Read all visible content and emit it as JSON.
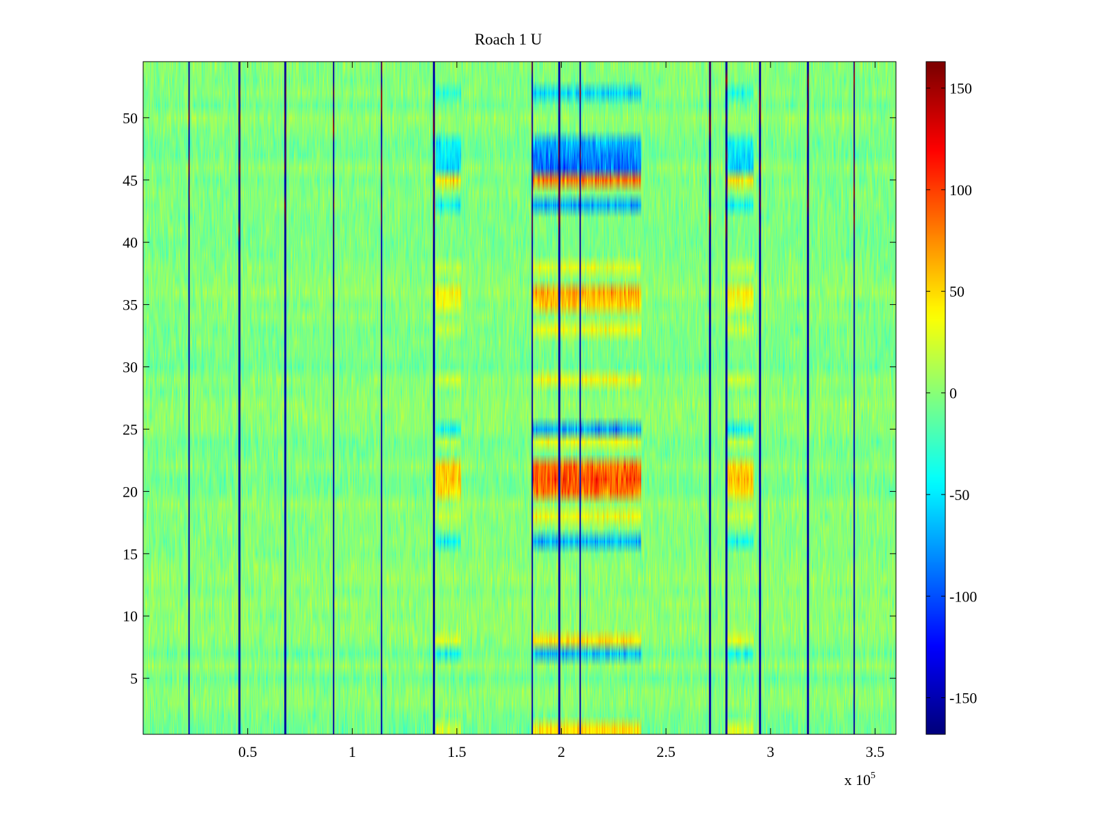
{
  "chart_data": {
    "type": "heatmap",
    "title": "Roach 1 U",
    "xlabel": "",
    "ylabel": "",
    "x_multiplier_label": "x 10",
    "x_multiplier_exponent": "5",
    "xlim": [
      0,
      3.6
    ],
    "ylim": [
      0.5,
      54.5
    ],
    "x_ticks": [
      0.5,
      1,
      1.5,
      2,
      2.5,
      3,
      3.5
    ],
    "x_tick_labels": [
      "0.5",
      "1",
      "1.5",
      "2",
      "2.5",
      "3",
      "3.5"
    ],
    "y_ticks": [
      5,
      10,
      15,
      20,
      25,
      30,
      35,
      40,
      45,
      50
    ],
    "y_tick_labels": [
      "5",
      "10",
      "15",
      "20",
      "25",
      "30",
      "35",
      "40",
      "45",
      "50"
    ],
    "rows": 54,
    "clim": [
      -168,
      163
    ],
    "colormap": "jet",
    "colorbar_ticks": [
      150,
      100,
      50,
      0,
      -50,
      -100,
      -150
    ],
    "colorbar_tick_labels": [
      "150",
      "100",
      "50",
      "0",
      "-50",
      "-100",
      "-150"
    ],
    "spike_lines_x": [
      0.22,
      0.46,
      0.68,
      0.91,
      1.14,
      1.39,
      1.86,
      1.99,
      2.09,
      2.71,
      2.79,
      2.95,
      3.18,
      3.4
    ],
    "active_bands": [
      {
        "x0": 1.4,
        "x1": 1.52,
        "strength": 0.6
      },
      {
        "x0": 1.86,
        "x1": 2.38,
        "strength": 1.0
      },
      {
        "x0": 2.79,
        "x1": 2.92,
        "strength": 0.6
      }
    ],
    "row_pattern": [
      {
        "row": 1,
        "value": 55
      },
      {
        "row": 7,
        "value": -60
      },
      {
        "row": 8,
        "value": 50
      },
      {
        "row": 16,
        "value": -70
      },
      {
        "row": 18,
        "value": 35
      },
      {
        "row": 20,
        "value": 95
      },
      {
        "row": 21,
        "value": 110
      },
      {
        "row": 22,
        "value": 90
      },
      {
        "row": 24,
        "value": 40
      },
      {
        "row": 25,
        "value": -80
      },
      {
        "row": 29,
        "value": 35
      },
      {
        "row": 33,
        "value": 40
      },
      {
        "row": 35,
        "value": 60
      },
      {
        "row": 36,
        "value": 65
      },
      {
        "row": 38,
        "value": 30
      },
      {
        "row": 43,
        "value": -70
      },
      {
        "row": 45,
        "value": 90
      },
      {
        "row": 46,
        "value": -100
      },
      {
        "row": 47,
        "value": -80
      },
      {
        "row": 48,
        "value": -65
      },
      {
        "row": 52,
        "value": -60
      }
    ]
  }
}
